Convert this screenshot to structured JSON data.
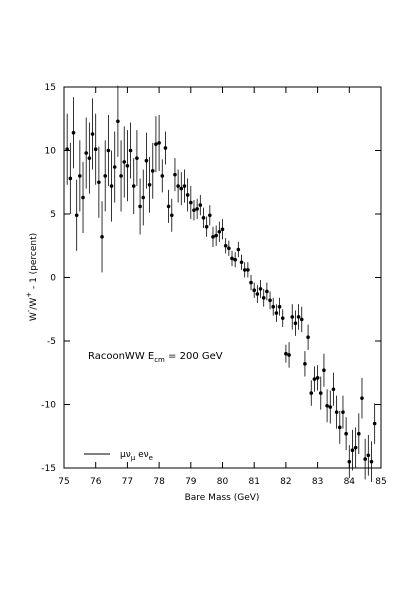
{
  "chart_data": {
    "type": "scatter",
    "xlabel": "Bare Mass (GeV)",
    "ylabel": "W^{-}/W^{+} - 1 (percent)",
    "annotation": "RacoonWW E_{cm} = 200 GeV",
    "xlim": [
      75,
      85
    ],
    "ylim": [
      -15,
      15
    ],
    "xticks": [
      75,
      76,
      77,
      78,
      79,
      80,
      81,
      82,
      83,
      84,
      85
    ],
    "yticks": [
      -15,
      -10,
      -5,
      0,
      5,
      10,
      15
    ],
    "legend": "lower left",
    "series": [
      {
        "name": "μν_{μ} eν_{e}",
        "color": "#000000",
        "x": [
          75.1,
          75.2,
          75.3,
          75.4,
          75.5,
          75.6,
          75.7,
          75.8,
          75.9,
          76.0,
          76.1,
          76.2,
          76.3,
          76.4,
          76.5,
          76.6,
          76.7,
          76.8,
          76.9,
          77.0,
          77.1,
          77.2,
          77.3,
          77.4,
          77.5,
          77.6,
          77.7,
          77.8,
          77.9,
          78.0,
          78.1,
          78.2,
          78.3,
          78.4,
          78.5,
          78.6,
          78.7,
          78.8,
          78.9,
          79.0,
          79.1,
          79.2,
          79.3,
          79.4,
          79.5,
          79.6,
          79.7,
          79.8,
          79.9,
          80.0,
          80.1,
          80.2,
          80.3,
          80.4,
          80.5,
          80.6,
          80.7,
          80.8,
          80.9,
          81.0,
          81.1,
          81.2,
          81.3,
          81.4,
          81.5,
          81.6,
          81.7,
          81.8,
          81.9,
          82.0,
          82.1,
          82.2,
          82.3,
          82.4,
          82.5,
          82.6,
          82.7,
          82.8,
          82.9,
          83.0,
          83.1,
          83.2,
          83.3,
          83.4,
          83.5,
          83.6,
          83.7,
          83.8,
          83.9,
          84.0,
          84.1,
          84.2,
          84.3,
          84.4,
          84.5,
          84.6,
          84.7,
          84.8
        ],
        "values": [
          10.1,
          7.8,
          11.4,
          4.9,
          8.0,
          6.3,
          9.8,
          9.4,
          11.3,
          10.1,
          7.5,
          3.2,
          8.0,
          10.0,
          7.2,
          8.7,
          12.3,
          8.0,
          9.1,
          8.8,
          10.0,
          7.2,
          9.4,
          5.6,
          6.3,
          9.2,
          7.3,
          8.4,
          10.5,
          10.6,
          8.0,
          10.2,
          5.6,
          4.9,
          8.1,
          7.2,
          7.0,
          7.2,
          6.5,
          5.9,
          5.3,
          5.4,
          5.7,
          4.7,
          4.0,
          4.9,
          3.2,
          3.3,
          3.6,
          3.8,
          2.5,
          2.3,
          1.5,
          1.4,
          2.2,
          1.2,
          0.6,
          0.6,
          -0.4,
          -1.0,
          -1.3,
          -0.9,
          -1.6,
          -1.1,
          -1.8,
          -2.3,
          -2.8,
          -2.3,
          -3.2,
          -6.0,
          -6.1,
          -3.1,
          -3.6,
          -3.1,
          -3.3,
          -6.8,
          -4.7,
          -9.1,
          -8.0,
          -7.9,
          -9.1,
          -7.3,
          -10.1,
          -10.2,
          -8.8,
          -10.6,
          -11.8,
          -10.6,
          -12.3,
          -14.5,
          -13.6,
          -13.4,
          -12.3,
          -9.5,
          -14.3,
          -14.0,
          -14.5,
          -11.5
        ],
        "errors": [
          2.8,
          2.8,
          2.8,
          2.8,
          2.8,
          2.8,
          2.8,
          2.8,
          2.8,
          2.8,
          2.8,
          2.8,
          2.8,
          2.8,
          2.8,
          2.8,
          2.8,
          2.8,
          2.8,
          2.8,
          2.2,
          2.2,
          2.2,
          2.2,
          2.2,
          2.2,
          2.2,
          2.2,
          2.2,
          2.2,
          1.3,
          1.3,
          1.3,
          1.3,
          1.3,
          1.3,
          1.3,
          1.3,
          1.3,
          1.3,
          0.8,
          0.8,
          0.8,
          0.8,
          0.8,
          0.8,
          0.8,
          0.8,
          0.8,
          0.8,
          0.6,
          0.6,
          0.6,
          0.6,
          0.6,
          0.6,
          0.6,
          0.6,
          0.6,
          0.6,
          0.7,
          0.7,
          0.7,
          0.7,
          0.7,
          0.7,
          0.7,
          0.7,
          0.7,
          0.7,
          1.0,
          1.0,
          1.0,
          1.0,
          1.0,
          1.0,
          1.0,
          1.0,
          1.0,
          1.0,
          1.3,
          1.3,
          1.3,
          1.3,
          1.3,
          1.3,
          1.3,
          1.3,
          1.3,
          1.3,
          1.6,
          1.6,
          1.6,
          1.6,
          1.6,
          1.6,
          1.6,
          1.6
        ]
      }
    ]
  }
}
